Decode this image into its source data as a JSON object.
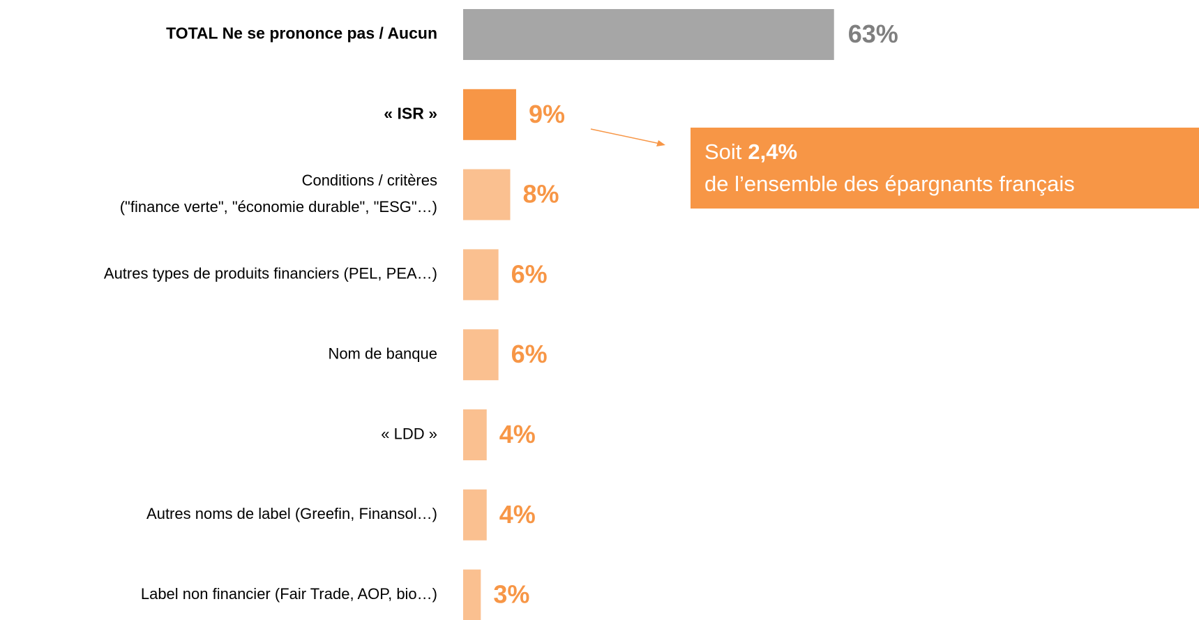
{
  "chart_data": {
    "type": "hbar",
    "categories": [
      "TOTAL Ne se prononce pas / Aucun",
      "« ISR »",
      [
        "Conditions / critères",
        "(\"finance verte\", \"économie durable\", \"ESG\"…)"
      ],
      "Autres types de produits financiers (PEL, PEA…)",
      "Nom de banque",
      "« LDD »",
      "Autres noms de label (Greefin, Finansol…)",
      "Label non financier (Fair Trade, AOP, bio…)"
    ],
    "values": [
      63,
      9,
      8,
      6,
      6,
      4,
      4,
      3
    ],
    "value_labels": [
      "63%",
      "9%",
      "8%",
      "6%",
      "6%",
      "4%",
      "4%",
      "3%"
    ],
    "colors": [
      "#a6a6a6",
      "#f79646",
      "#fac090",
      "#fac090",
      "#fac090",
      "#fac090",
      "#fac090",
      "#fac090"
    ],
    "label_colors": [
      "#7f7f7f",
      "#f79646",
      "#f79646",
      "#f79646",
      "#f79646",
      "#f79646",
      "#f79646",
      "#f79646"
    ],
    "annotation": {
      "prefix": "Soit",
      "value": "2,4%",
      "text": "de l’ensemble des épargnants français",
      "color": "#f79646"
    }
  }
}
